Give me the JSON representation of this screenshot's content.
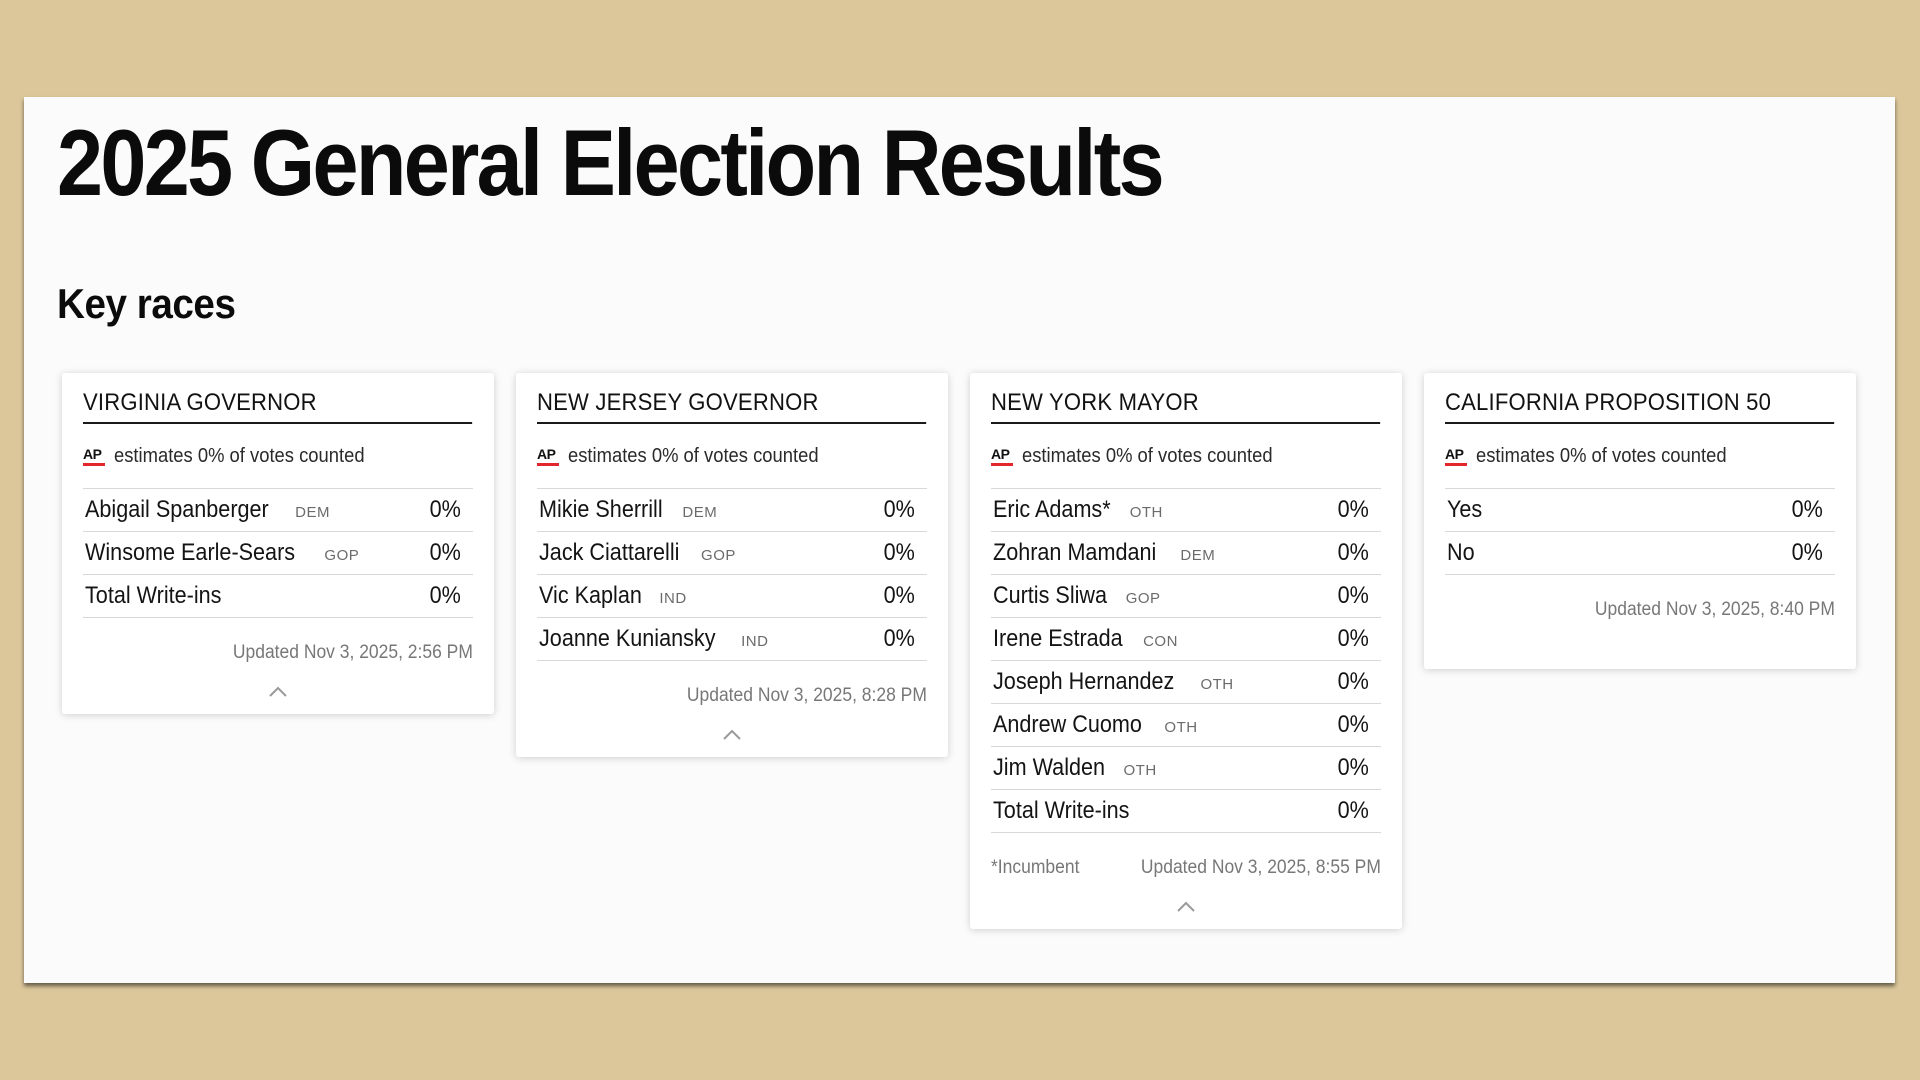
{
  "page": {
    "title": "2025 General Election Results",
    "section_title": "Key races"
  },
  "colors": {
    "page_background": "#dcc79b",
    "panel_background": "#fbfbfb",
    "ap_accent": "#e3262b"
  },
  "ap_logo_text": "AP",
  "races": [
    {
      "title": "VIRGINIA GOVERNOR",
      "estimate_text": "estimates 0% of votes counted",
      "candidates": [
        {
          "name": "Abigail Spanberger",
          "party": "DEM",
          "pct": "0%"
        },
        {
          "name": "Winsome Earle-Sears",
          "party": "GOP",
          "pct": "0%"
        },
        {
          "name": "Total Write-ins",
          "party": "",
          "pct": "0%"
        }
      ],
      "footnote": "",
      "updated": "Updated Nov 3, 2025, 2:56 PM"
    },
    {
      "title": "NEW JERSEY GOVERNOR",
      "estimate_text": "estimates 0% of votes counted",
      "candidates": [
        {
          "name": "Mikie Sherrill",
          "party": "DEM",
          "pct": "0%"
        },
        {
          "name": "Jack Ciattarelli",
          "party": "GOP",
          "pct": "0%"
        },
        {
          "name": "Vic Kaplan",
          "party": "IND",
          "pct": "0%"
        },
        {
          "name": "Joanne Kuniansky",
          "party": "IND",
          "pct": "0%"
        }
      ],
      "footnote": "",
      "updated": "Updated Nov 3, 2025, 8:28 PM"
    },
    {
      "title": "NEW YORK MAYOR",
      "estimate_text": "estimates 0% of votes counted",
      "candidates": [
        {
          "name": "Eric Adams*",
          "party": "OTH",
          "pct": "0%"
        },
        {
          "name": "Zohran Mamdani",
          "party": "DEM",
          "pct": "0%"
        },
        {
          "name": "Curtis Sliwa",
          "party": "GOP",
          "pct": "0%"
        },
        {
          "name": "Irene Estrada",
          "party": "CON",
          "pct": "0%"
        },
        {
          "name": "Joseph Hernandez",
          "party": "OTH",
          "pct": "0%"
        },
        {
          "name": "Andrew Cuomo",
          "party": "OTH",
          "pct": "0%"
        },
        {
          "name": "Jim Walden",
          "party": "OTH",
          "pct": "0%"
        },
        {
          "name": "Total Write-ins",
          "party": "",
          "pct": "0%"
        }
      ],
      "footnote": "*Incumbent",
      "updated": "Updated Nov 3, 2025, 8:55 PM"
    },
    {
      "title": "CALIFORNIA PROPOSITION 50",
      "estimate_text": "estimates 0% of votes counted",
      "candidates": [
        {
          "name": "Yes",
          "party": "",
          "pct": "0%"
        },
        {
          "name": "No",
          "party": "",
          "pct": "0%"
        }
      ],
      "footnote": "",
      "updated": "Updated Nov 3, 2025, 8:40 PM"
    }
  ]
}
